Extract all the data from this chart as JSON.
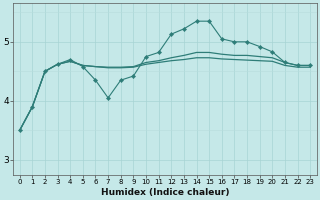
{
  "xlabel": "Humidex (Indice chaleur)",
  "bg_color": "#c5e8e8",
  "line_color": "#2e7d78",
  "grid_color_major": "#a8d4d4",
  "grid_color_minor": "#b8dcdc",
  "xlim": [
    -0.5,
    23.5
  ],
  "ylim": [
    2.75,
    5.65
  ],
  "yticks": [
    3,
    4,
    5
  ],
  "xticks": [
    0,
    1,
    2,
    3,
    4,
    5,
    6,
    7,
    8,
    9,
    10,
    11,
    12,
    13,
    14,
    15,
    16,
    17,
    18,
    19,
    20,
    21,
    22,
    23
  ],
  "line_jagged_x": [
    0,
    1,
    2,
    3,
    4,
    5,
    6,
    7,
    8,
    9,
    10,
    11,
    12,
    13,
    14,
    15,
    16,
    17,
    18,
    19,
    20,
    21,
    22,
    23
  ],
  "line_jagged_y": [
    3.5,
    3.9,
    4.5,
    4.62,
    4.7,
    4.58,
    4.35,
    4.05,
    4.35,
    4.42,
    4.75,
    4.82,
    5.13,
    5.22,
    5.35,
    5.35,
    5.05,
    5.0,
    5.0,
    4.92,
    4.83,
    4.65,
    4.6,
    4.6
  ],
  "line_smooth1_x": [
    0,
    1,
    2,
    3,
    4,
    5,
    6,
    7,
    8,
    9,
    10,
    11,
    12,
    13,
    14,
    15,
    16,
    17,
    18,
    19,
    20,
    21,
    22,
    23
  ],
  "line_smooth1_y": [
    3.5,
    3.9,
    4.5,
    4.62,
    4.67,
    4.6,
    4.58,
    4.56,
    4.56,
    4.57,
    4.62,
    4.65,
    4.68,
    4.7,
    4.73,
    4.73,
    4.71,
    4.7,
    4.69,
    4.68,
    4.67,
    4.6,
    4.57,
    4.57
  ],
  "line_smooth2_x": [
    0,
    1,
    2,
    3,
    4,
    5,
    6,
    7,
    8,
    9,
    10,
    11,
    12,
    13,
    14,
    15,
    16,
    17,
    18,
    19,
    20,
    21,
    22,
    23
  ],
  "line_smooth2_y": [
    3.5,
    3.9,
    4.5,
    4.62,
    4.67,
    4.6,
    4.58,
    4.57,
    4.57,
    4.58,
    4.65,
    4.68,
    4.73,
    4.77,
    4.82,
    4.82,
    4.79,
    4.77,
    4.77,
    4.75,
    4.73,
    4.65,
    4.6,
    4.6
  ]
}
